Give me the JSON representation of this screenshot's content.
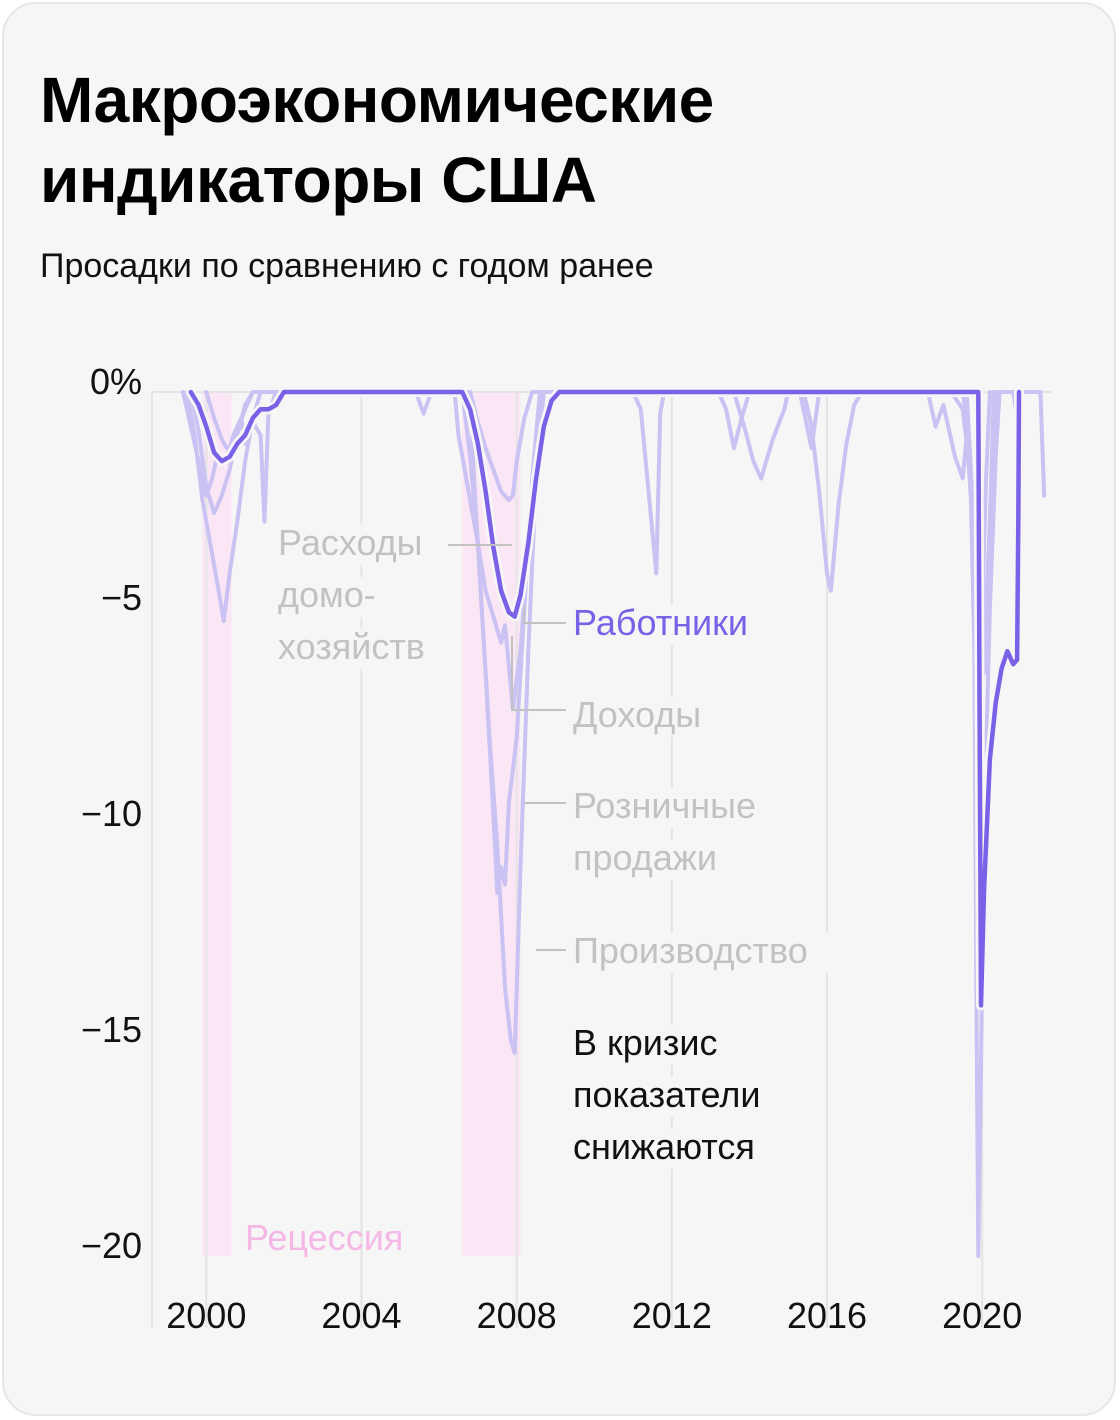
{
  "header": {
    "title": "Макроэкономические индикаторы США",
    "subtitle": "Просадки по сравнению с годом ранее"
  },
  "colors": {
    "background": "#f6f6f6",
    "workers": "#7b61e8",
    "other_series": "#c9c2f3",
    "recession": "#fae6f5",
    "recession_label": "#f5b8e6",
    "muted_label": "#c2c2c2",
    "grid": "#e4e4e4"
  },
  "chart_data": {
    "type": "line",
    "xlabel": "",
    "ylabel": "",
    "xlim": [
      1998.6,
      2021.8
    ],
    "ylim": [
      -20,
      0
    ],
    "grid": true,
    "x_ticks": [
      {
        "value": 2000,
        "label": "2000"
      },
      {
        "value": 2004,
        "label": "2004"
      },
      {
        "value": 2008,
        "label": "2008"
      },
      {
        "value": 2012,
        "label": "2012"
      },
      {
        "value": 2016,
        "label": "2016"
      },
      {
        "value": 2020,
        "label": "2020"
      }
    ],
    "y_ticks": [
      {
        "value": 0,
        "label": "0%"
      },
      {
        "value": -5,
        "label": "−5"
      },
      {
        "value": -10,
        "label": "−10"
      },
      {
        "value": -15,
        "label": "−15"
      },
      {
        "value": -20,
        "label": "−20"
      }
    ],
    "recessions": [
      {
        "start": 1999.9,
        "end": 2000.65
      },
      {
        "start": 2006.6,
        "end": 2008.1
      }
    ],
    "recession_label": "Рецессия",
    "annotation": "В кризис показатели снижаются",
    "series": [
      {
        "name": "Расходы домохозяйств",
        "highlight": false,
        "points": [
          [
            2000.0,
            0
          ],
          [
            2000.2,
            -0.6
          ],
          [
            2000.4,
            -1.1
          ],
          [
            2000.6,
            -1.4
          ],
          [
            2000.8,
            -0.9
          ],
          [
            2001.0,
            -0.4
          ],
          [
            2001.2,
            0
          ],
          [
            2005.6,
            0
          ],
          [
            2006.8,
            0
          ],
          [
            2007.0,
            -0.7
          ],
          [
            2007.2,
            -1.3
          ],
          [
            2007.4,
            -1.8
          ],
          [
            2007.6,
            -2.3
          ],
          [
            2007.8,
            -2.5
          ],
          [
            2007.9,
            -2.4
          ],
          [
            2008.0,
            -1.6
          ],
          [
            2008.2,
            -0.6
          ],
          [
            2008.4,
            0
          ],
          [
            2013.6,
            0
          ],
          [
            2013.9,
            -0.9
          ],
          [
            2014.1,
            -1.6
          ],
          [
            2014.3,
            -2.0
          ],
          [
            2014.6,
            -1.1
          ],
          [
            2014.9,
            -0.4
          ],
          [
            2015.0,
            0
          ],
          [
            2019.6,
            0
          ],
          [
            2019.75,
            -2.5
          ],
          [
            2019.85,
            -6.0
          ],
          [
            2020.0,
            -6.8
          ],
          [
            2020.15,
            -4.0
          ],
          [
            2020.3,
            -0.8
          ],
          [
            2020.4,
            0
          ]
        ]
      },
      {
        "name": "Доходы",
        "highlight": false,
        "points": [
          [
            1999.4,
            0
          ],
          [
            1999.6,
            -0.8
          ],
          [
            1999.8,
            -1.6
          ],
          [
            2000.0,
            -2.4
          ],
          [
            2000.15,
            -2.0
          ],
          [
            2000.3,
            -1.4
          ],
          [
            2000.5,
            -1.6
          ],
          [
            2000.7,
            -1.0
          ],
          [
            2000.9,
            -0.6
          ],
          [
            2001.0,
            -1.2
          ],
          [
            2001.2,
            -0.7
          ],
          [
            2001.4,
            -1.0
          ],
          [
            2001.5,
            -3.0
          ],
          [
            2001.6,
            -0.5
          ],
          [
            2001.8,
            0
          ],
          [
            2006.4,
            0
          ],
          [
            2006.5,
            -1.0
          ],
          [
            2006.8,
            -2.5
          ],
          [
            2007.0,
            -3.5
          ],
          [
            2007.2,
            -4.6
          ],
          [
            2007.4,
            -5.2
          ],
          [
            2007.6,
            -5.8
          ],
          [
            2007.7,
            -5.4
          ],
          [
            2007.9,
            -7.3
          ],
          [
            2008.1,
            -6.0
          ],
          [
            2008.3,
            -3.5
          ],
          [
            2008.5,
            -1.5
          ],
          [
            2008.7,
            0
          ],
          [
            2011.0,
            0
          ],
          [
            2011.2,
            -0.4
          ],
          [
            2011.6,
            -4.2
          ],
          [
            2011.7,
            -0.5
          ],
          [
            2011.8,
            0
          ],
          [
            2015.3,
            0
          ],
          [
            2015.6,
            -1.3
          ],
          [
            2015.8,
            0
          ],
          [
            2018.6,
            0
          ],
          [
            2018.8,
            -0.8
          ],
          [
            2019.0,
            -0.3
          ],
          [
            2019.3,
            -1.5
          ],
          [
            2019.5,
            -2.0
          ],
          [
            2019.6,
            -1.0
          ],
          [
            2019.75,
            -3.0
          ],
          [
            2019.85,
            -5.0
          ],
          [
            2020.0,
            -6.2
          ],
          [
            2020.1,
            -6.5
          ],
          [
            2020.2,
            -3.0
          ],
          [
            2020.3,
            0
          ],
          [
            2020.8,
            0
          ],
          [
            2020.9,
            -0.6
          ],
          [
            2021.0,
            0
          ],
          [
            2021.5,
            0
          ],
          [
            2021.6,
            -2.4
          ]
        ]
      },
      {
        "name": "Розничные продажи",
        "highlight": false,
        "points": [
          [
            1999.6,
            0
          ],
          [
            1999.8,
            -0.9
          ],
          [
            2000.0,
            -2.2
          ],
          [
            2000.2,
            -2.8
          ],
          [
            2000.4,
            -2.4
          ],
          [
            2000.6,
            -1.8
          ],
          [
            2000.8,
            -1.0
          ],
          [
            2001.0,
            -0.3
          ],
          [
            2001.2,
            0
          ],
          [
            2005.4,
            0
          ],
          [
            2005.6,
            -0.5
          ],
          [
            2005.8,
            0
          ],
          [
            2006.6,
            0
          ],
          [
            2006.8,
            -1.5
          ],
          [
            2007.0,
            -3.5
          ],
          [
            2007.2,
            -6.5
          ],
          [
            2007.4,
            -9.8
          ],
          [
            2007.5,
            -11.6
          ],
          [
            2007.6,
            -11.0
          ],
          [
            2007.7,
            -11.4
          ],
          [
            2007.8,
            -9.5
          ],
          [
            2008.0,
            -8.0
          ],
          [
            2008.2,
            -5.0
          ],
          [
            2008.4,
            -2.0
          ],
          [
            2008.6,
            0
          ],
          [
            2013.2,
            0
          ],
          [
            2013.4,
            -0.4
          ],
          [
            2013.6,
            -1.3
          ],
          [
            2013.8,
            -0.6
          ],
          [
            2014.0,
            0
          ],
          [
            2019.5,
            0
          ],
          [
            2019.65,
            -1.0
          ],
          [
            2019.8,
            -4.0
          ],
          [
            2019.9,
            -7.5
          ],
          [
            2020.0,
            -5.0
          ],
          [
            2020.1,
            -2.0
          ],
          [
            2020.2,
            0
          ]
        ]
      },
      {
        "name": "Производство",
        "highlight": false,
        "points": [
          [
            1999.5,
            0
          ],
          [
            1999.7,
            -1.0
          ],
          [
            1999.9,
            -2.5
          ],
          [
            2000.1,
            -3.5
          ],
          [
            2000.3,
            -4.5
          ],
          [
            2000.45,
            -5.3
          ],
          [
            2000.6,
            -4.2
          ],
          [
            2000.8,
            -3.0
          ],
          [
            2001.0,
            -1.6
          ],
          [
            2001.2,
            -0.6
          ],
          [
            2001.4,
            0
          ],
          [
            2006.8,
            0
          ],
          [
            2006.9,
            -2.0
          ],
          [
            2007.1,
            -5.0
          ],
          [
            2007.3,
            -8.0
          ],
          [
            2007.5,
            -10.5
          ],
          [
            2007.7,
            -13.8
          ],
          [
            2007.85,
            -15.0
          ],
          [
            2007.95,
            -15.3
          ],
          [
            2008.1,
            -11.0
          ],
          [
            2008.3,
            -6.0
          ],
          [
            2008.5,
            -2.0
          ],
          [
            2008.7,
            0
          ],
          [
            2015.4,
            0
          ],
          [
            2015.6,
            -0.8
          ],
          [
            2015.8,
            -2.3
          ],
          [
            2016.0,
            -4.2
          ],
          [
            2016.1,
            -4.6
          ],
          [
            2016.3,
            -2.6
          ],
          [
            2016.5,
            -1.2
          ],
          [
            2016.7,
            -0.3
          ],
          [
            2016.9,
            0
          ],
          [
            2019.2,
            0
          ],
          [
            2019.5,
            -0.4
          ],
          [
            2019.7,
            -2.0
          ],
          [
            2019.8,
            -6.0
          ],
          [
            2019.85,
            -14.0
          ],
          [
            2019.9,
            -20.0
          ],
          [
            2019.95,
            -17.0
          ],
          [
            2020.05,
            -10.0
          ],
          [
            2020.2,
            -5.0
          ],
          [
            2020.35,
            -1.5
          ],
          [
            2020.45,
            0
          ]
        ]
      },
      {
        "name": "Работники",
        "highlight": true,
        "points": [
          [
            1999.6,
            0
          ],
          [
            1999.8,
            -0.3
          ],
          [
            2000.0,
            -0.8
          ],
          [
            2000.2,
            -1.4
          ],
          [
            2000.4,
            -1.6
          ],
          [
            2000.6,
            -1.5
          ],
          [
            2000.8,
            -1.2
          ],
          [
            2001.0,
            -1.0
          ],
          [
            2001.2,
            -0.6
          ],
          [
            2001.4,
            -0.4
          ],
          [
            2001.6,
            -0.4
          ],
          [
            2001.8,
            -0.3
          ],
          [
            2002.0,
            0
          ],
          [
            2006.6,
            0
          ],
          [
            2006.8,
            -0.4
          ],
          [
            2007.0,
            -1.2
          ],
          [
            2007.2,
            -2.3
          ],
          [
            2007.4,
            -3.6
          ],
          [
            2007.6,
            -4.6
          ],
          [
            2007.8,
            -5.1
          ],
          [
            2007.95,
            -5.2
          ],
          [
            2008.1,
            -4.7
          ],
          [
            2008.3,
            -3.5
          ],
          [
            2008.5,
            -2.0
          ],
          [
            2008.7,
            -0.8
          ],
          [
            2008.9,
            -0.2
          ],
          [
            2009.1,
            0
          ],
          [
            2019.9,
            0
          ],
          [
            2019.93,
            -7.0
          ],
          [
            2019.97,
            -14.2
          ],
          [
            2020.05,
            -11.5
          ],
          [
            2020.2,
            -8.5
          ],
          [
            2020.35,
            -7.2
          ],
          [
            2020.5,
            -6.4
          ],
          [
            2020.65,
            -6.0
          ],
          [
            2020.8,
            -6.3
          ],
          [
            2020.9,
            -6.2
          ],
          [
            2020.93,
            -3.0
          ],
          [
            2020.95,
            0
          ]
        ]
      }
    ],
    "legend_labels": {
      "spending": [
        "Расходы",
        "домо-",
        "хозяйств"
      ],
      "workers": [
        "Работники"
      ],
      "income": [
        "Доходы"
      ],
      "retail": [
        "Розничные",
        "продажи"
      ],
      "production": [
        "Производство"
      ],
      "annotation": [
        "В кризис",
        "показатели",
        "снижаются"
      ]
    }
  }
}
